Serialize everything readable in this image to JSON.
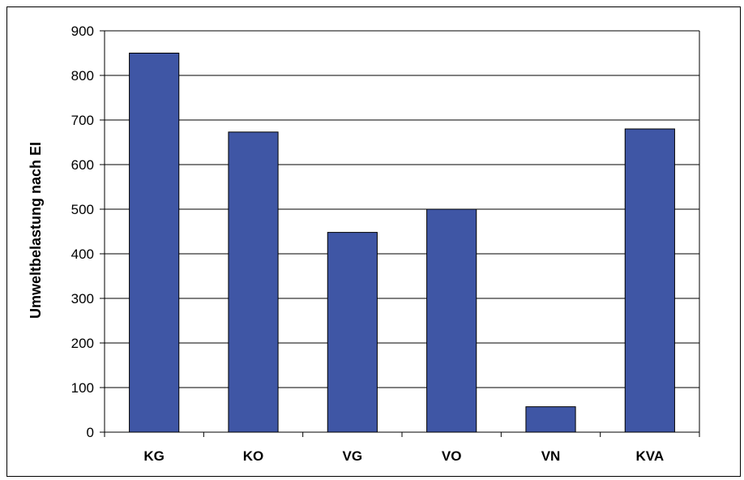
{
  "chart_data": {
    "type": "bar",
    "title": "",
    "xlabel": "",
    "ylabel": "Umweltbelastung nach EI",
    "categories": [
      "KG",
      "KO",
      "VG",
      "VO",
      "VN",
      "KVA"
    ],
    "values": [
      850,
      673,
      448,
      500,
      57,
      680
    ],
    "ylim": [
      0,
      900
    ],
    "yticks": [
      0,
      100,
      200,
      300,
      400,
      500,
      600,
      700,
      800,
      900
    ],
    "grid": true,
    "legend": "none",
    "bar_color": "#3F56A5"
  }
}
